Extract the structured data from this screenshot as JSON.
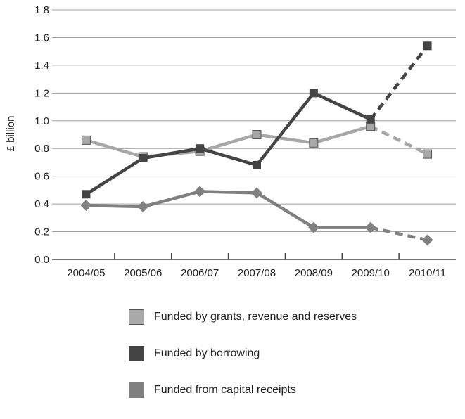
{
  "chart_data": {
    "type": "line",
    "ylabel": "£ billion",
    "xlabel": "",
    "ylim": [
      0,
      1.8
    ],
    "yticks": [
      "0.0",
      "0.2",
      "0.4",
      "0.6",
      "0.8",
      "1.0",
      "1.2",
      "1.4",
      "1.6",
      "1.8"
    ],
    "categories": [
      "2004/05",
      "2005/06",
      "2006/07",
      "2007/08",
      "2008/09",
      "2009/10",
      "2010/11"
    ],
    "grid": true,
    "legend_position": "bottom",
    "series": [
      {
        "name": "Funded by grants, revenue and reserves",
        "values": [
          0.86,
          0.74,
          0.78,
          0.9,
          0.84,
          0.96,
          0.76
        ],
        "color": "#a8a8a8",
        "marker": "square",
        "projected_from_index": 5
      },
      {
        "name": "Funded by borrowing",
        "values": [
          0.47,
          0.73,
          0.8,
          0.68,
          1.2,
          1.01,
          1.54
        ],
        "color": "#444444",
        "marker": "square",
        "projected_from_index": 5
      },
      {
        "name": "Funded from capital receipts",
        "values": [
          0.39,
          0.38,
          0.49,
          0.48,
          0.23,
          0.23,
          0.14
        ],
        "color": "#808080",
        "marker": "diamond",
        "projected_from_index": 5
      }
    ]
  }
}
